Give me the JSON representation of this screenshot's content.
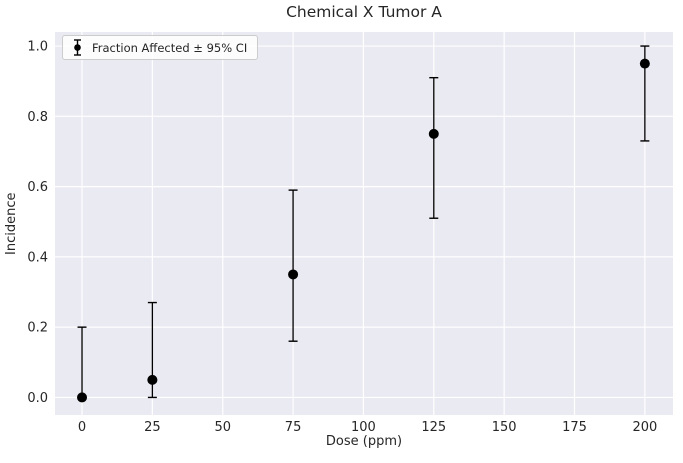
{
  "chart_data": {
    "type": "scatter",
    "title": "Chemical X Tumor A",
    "xlabel": "Dose (ppm)",
    "ylabel": "Incidence",
    "legend": {
      "label": "Fraction Affected ± 95% CI",
      "position": "upper left"
    },
    "xlim": [
      -9.6,
      210
    ],
    "ylim": [
      -0.05,
      1.04
    ],
    "xticks": [
      0,
      25,
      50,
      75,
      100,
      125,
      150,
      175,
      200
    ],
    "xtick_labels": [
      "0",
      "25",
      "50",
      "75",
      "100",
      "125",
      "150",
      "175",
      "200"
    ],
    "yticks": [
      0,
      0.2,
      0.4,
      0.6,
      0.8,
      1.0
    ],
    "ytick_labels": [
      "0.0",
      "0.2",
      "0.4",
      "0.6",
      "0.8",
      "1.0"
    ],
    "grid": true,
    "colors": {
      "figure_bg": "#ffffff",
      "axes_bg": "#eaeaf2",
      "grid": "#ffffff",
      "text": "#262626",
      "marker": "#000000"
    },
    "series": [
      {
        "name": "Fraction Affected ± 95% CI",
        "marker": "circle",
        "color": "#000000",
        "x": [
          0,
          25,
          75,
          125,
          200
        ],
        "y": [
          0.0,
          0.05,
          0.35,
          0.75,
          0.95
        ],
        "ci_low": [
          0.0,
          0.0,
          0.16,
          0.51,
          0.73
        ],
        "ci_high": [
          0.2,
          0.27,
          0.59,
          0.91,
          1.0
        ]
      }
    ]
  }
}
